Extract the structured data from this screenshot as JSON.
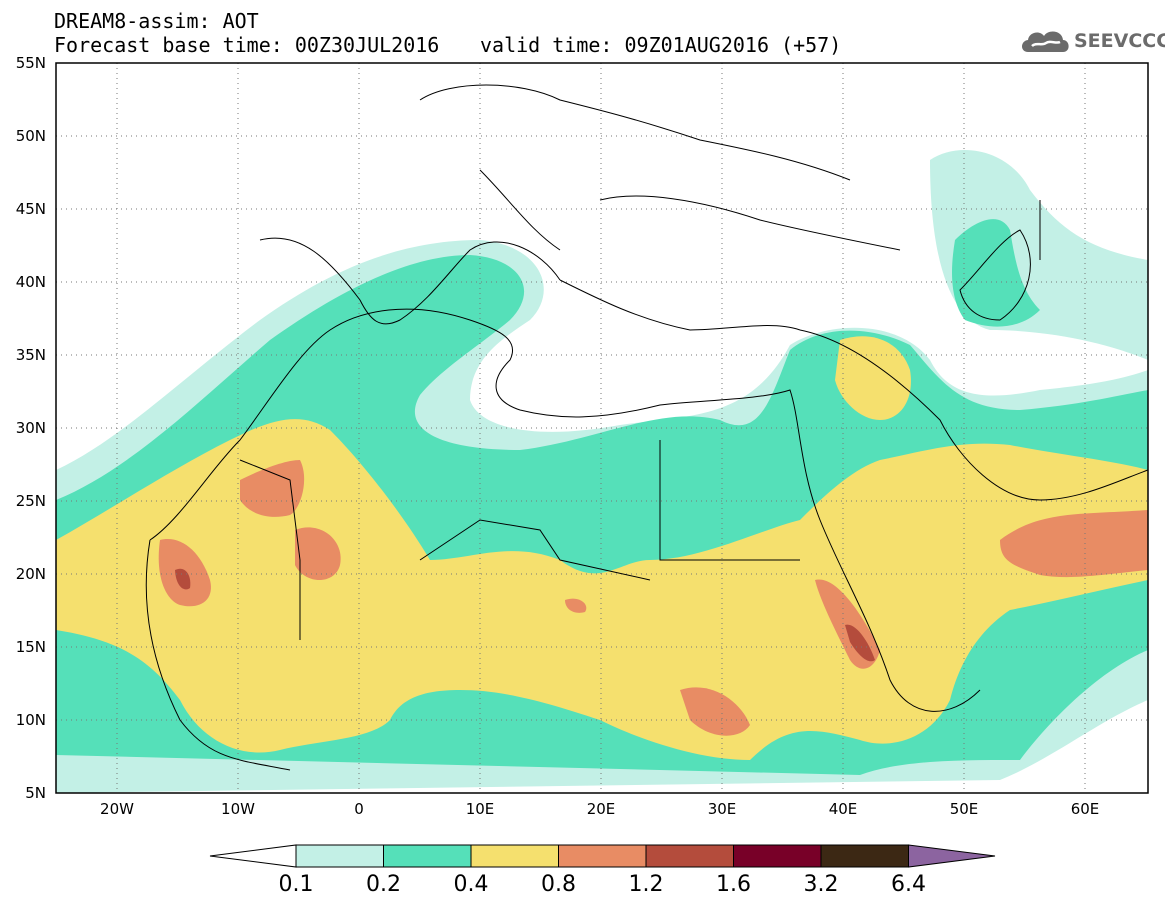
{
  "header": {
    "line1": "DREAM8-assim: AOT",
    "line2": "Forecast base time: 00Z30JUL2016",
    "line3": "valid time: 09Z01AUG2016 (+57)",
    "logo_text": "SEEVCCC"
  },
  "map": {
    "lon_range": [
      -25,
      65
    ],
    "lat_range": [
      5,
      55
    ],
    "lat_labels": [
      "55N",
      "50N",
      "45N",
      "40N",
      "35N",
      "30N",
      "25N",
      "20N",
      "15N",
      "10N",
      "5N"
    ],
    "lon_labels": [
      "20W",
      "10W",
      "0",
      "10E",
      "20E",
      "30E",
      "40E",
      "50E",
      "60E"
    ],
    "gridlines": "dotted"
  },
  "colorbar": {
    "levels": [
      "0.1",
      "0.2",
      "0.4",
      "0.8",
      "1.2",
      "1.6",
      "3.2",
      "6.4"
    ],
    "colors": [
      "#ffffff",
      "#c3f0e6",
      "#55e0b9",
      "#f5e06e",
      "#e88c64",
      "#b44c3c",
      "#780028",
      "#3c2814",
      "#8c64a0"
    ]
  },
  "legend_palette": {
    "v01": "#c3f0e6",
    "v02": "#55e0b9",
    "v04": "#f5e06e",
    "v08": "#e88c64",
    "v12": "#b44c3c",
    "v16": "#780028"
  }
}
